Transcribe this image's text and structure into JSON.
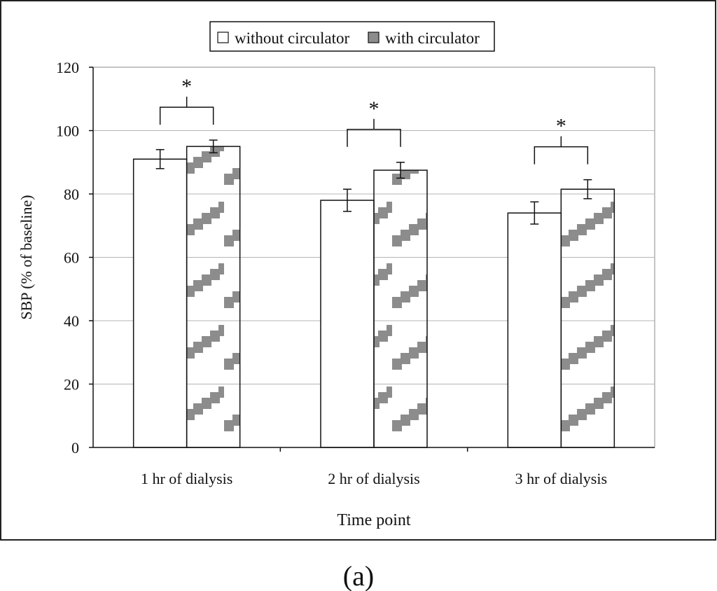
{
  "chart_data": {
    "type": "bar",
    "categories": [
      "1 hr of dialysis",
      "2 hr of dialysis",
      "3 hr of dialysis"
    ],
    "series": [
      {
        "name": "without circulator",
        "values": [
          91,
          78,
          74
        ],
        "errors": [
          3,
          3.5,
          3.5
        ],
        "pattern": "plain",
        "color": "#ffffff"
      },
      {
        "name": "with circulator",
        "values": [
          95,
          87.5,
          81.5
        ],
        "errors": [
          2,
          2.5,
          3
        ],
        "pattern": "diagonal-stripes",
        "color": "#8c8c8c"
      }
    ],
    "xlabel": "Time point",
    "ylabel": "SBP (% of baseline)",
    "ylim": [
      0,
      120
    ],
    "yticks": [
      0,
      20,
      40,
      60,
      80,
      100,
      120
    ],
    "grid": true,
    "legend_position": "top-center",
    "significance": [
      {
        "category": "1 hr of dialysis",
        "label": "*"
      },
      {
        "category": "2 hr of dialysis",
        "label": "*"
      },
      {
        "category": "3 hr of dialysis",
        "label": "*"
      }
    ]
  },
  "panel_label": "(a)"
}
